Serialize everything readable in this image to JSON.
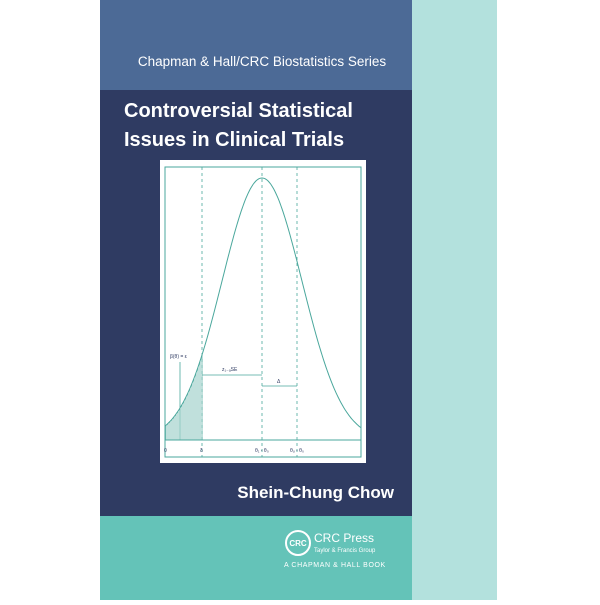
{
  "cover": {
    "series": "Chapman & Hall/CRC Biostatistics Series",
    "title_lines": [
      "Controversial Statistical",
      "Issues in Clinical Trials"
    ],
    "figure_labels": {
      "eps": "β(θ) = ε",
      "zse": "z₁₋ₐSE",
      "delta_arrow": "Δ",
      "zero": "0",
      "delta": "δ",
      "t1": "θ₁ - θ₀",
      "tu": "θᵤ - θ₀"
    },
    "author": "Shein-Chung Chow",
    "publisher": {
      "logo": "CRC",
      "name": "CRC Press",
      "group": "Taylor & Francis Group",
      "imprint": "A CHAPMAN & HALL BOOK"
    }
  }
}
